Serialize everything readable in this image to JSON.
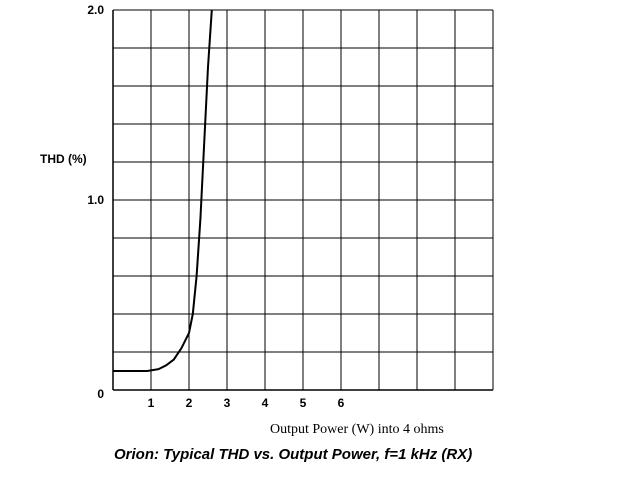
{
  "chart_data": {
    "type": "line",
    "title": "Orion: Typical THD  vs. Output Power, f=1 kHz (RX)",
    "xlabel": "Output Power (W)  into 4 ohms",
    "ylabel": "THD (%)",
    "xlim": [
      0,
      10
    ],
    "ylim": [
      0,
      2.0
    ],
    "x_tick_labels": [
      "1",
      "2",
      "3",
      "4",
      "5",
      "6"
    ],
    "x_tick_values": [
      1,
      2,
      3,
      4,
      5,
      6
    ],
    "y_tick_labels": [
      "0",
      "1.0",
      "2.0"
    ],
    "y_tick_values": [
      0,
      1.0,
      2.0
    ],
    "grid": true,
    "grid_x_step": 1,
    "grid_y_step": 0.2,
    "series": [
      {
        "color": "#000000",
        "x": [
          0.0,
          0.5,
          0.9,
          1.2,
          1.4,
          1.6,
          1.8,
          2.0,
          2.1,
          2.2,
          2.3,
          2.4,
          2.5,
          2.6
        ],
        "y": [
          0.1,
          0.1,
          0.1,
          0.11,
          0.13,
          0.16,
          0.22,
          0.3,
          0.4,
          0.6,
          0.9,
          1.3,
          1.7,
          2.0
        ]
      }
    ]
  },
  "colors": {
    "background": "#ffffff",
    "axis": "#000000",
    "grid": "#000000",
    "line": "#000000"
  }
}
